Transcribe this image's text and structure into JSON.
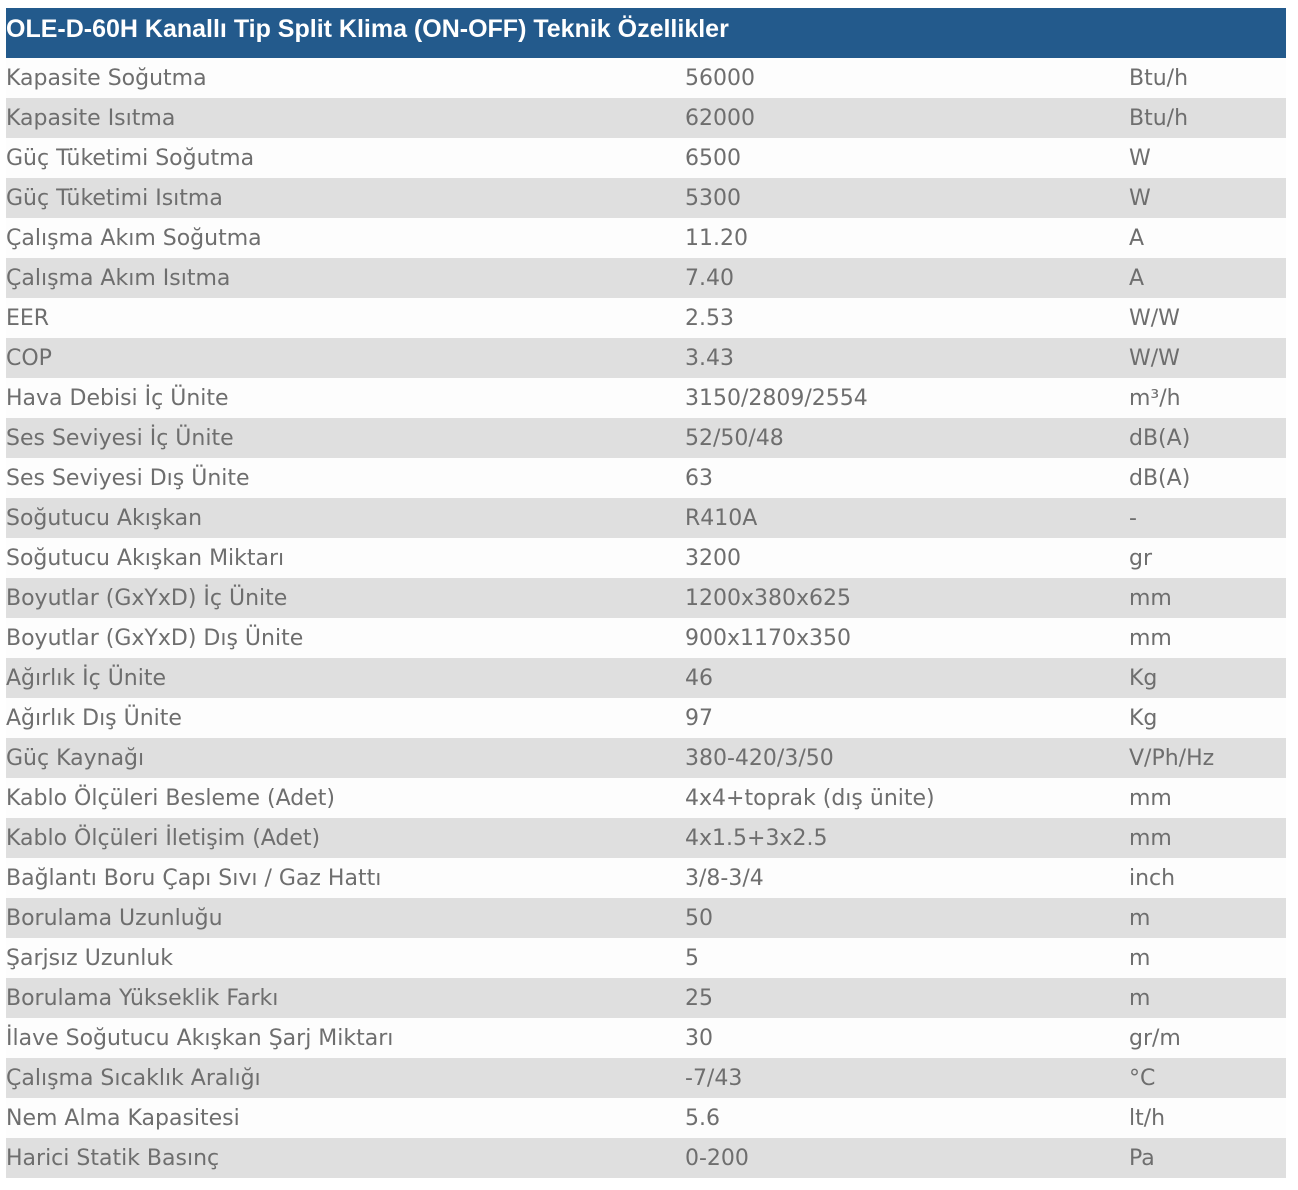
{
  "title": "OLE-D-60H Kanallı Tip Split Klima (ON-OFF) Teknik Özellikler",
  "colors": {
    "header_bg": "#235a8c",
    "row_alt": "#dfdfdf",
    "text": "#6e6e6e"
  },
  "rows": [
    {
      "label": "Kapasite Soğutma",
      "value": "56000",
      "unit": "Btu/h"
    },
    {
      "label": "Kapasite Isıtma",
      "value": "62000",
      "unit": "Btu/h"
    },
    {
      "label": "Güç Tüketimi Soğutma",
      "value": "6500",
      "unit": "W"
    },
    {
      "label": "Güç Tüketimi Isıtma",
      "value": "5300",
      "unit": "W"
    },
    {
      "label": "Çalışma Akım Soğutma",
      "value": "11.20",
      "unit": "A"
    },
    {
      "label": "Çalışma Akım Isıtma",
      "value": "7.40",
      "unit": "A"
    },
    {
      "label": "EER",
      "value": "2.53",
      "unit": "W/W"
    },
    {
      "label": "COP",
      "value": "3.43",
      "unit": "W/W"
    },
    {
      "label": "Hava Debisi İç Ünite",
      "value": "3150/2809/2554",
      "unit": "m³/h"
    },
    {
      "label": "Ses Seviyesi İç Ünite",
      "value": "52/50/48",
      "unit": "dB(A)"
    },
    {
      "label": "Ses Seviyesi Dış Ünite",
      "value": "63",
      "unit": "dB(A)"
    },
    {
      "label": "Soğutucu Akışkan",
      "value": "R410A",
      "unit": "-"
    },
    {
      "label": "Soğutucu Akışkan Miktarı",
      "value": "3200",
      "unit": "gr"
    },
    {
      "label": "Boyutlar (GxYxD) İç Ünite",
      "value": "1200x380x625",
      "unit": "mm"
    },
    {
      "label": "Boyutlar (GxYxD) Dış Ünite",
      "value": "900x1170x350",
      "unit": "mm"
    },
    {
      "label": "Ağırlık İç Ünite",
      "value": "46",
      "unit": "Kg"
    },
    {
      "label": "Ağırlık Dış Ünite",
      "value": "97",
      "unit": "Kg"
    },
    {
      "label": "Güç Kaynağı",
      "value": "380-420/3/50",
      "unit": "V/Ph/Hz"
    },
    {
      "label": "Kablo Ölçüleri Besleme (Adet)",
      "value": "4x4+toprak (dış ünite)",
      "unit": "mm"
    },
    {
      "label": "Kablo Ölçüleri İletişim (Adet)",
      "value": "4x1.5+3x2.5",
      "unit": "mm"
    },
    {
      "label": "Bağlantı Boru Çapı Sıvı / Gaz Hattı",
      "value": "3/8-3/4",
      "unit": "inch"
    },
    {
      "label": "Borulama Uzunluğu",
      "value": "50",
      "unit": "m"
    },
    {
      "label": "Şarjsız Uzunluk",
      "value": "5",
      "unit": "m"
    },
    {
      "label": "Borulama Yükseklik Farkı",
      "value": "25",
      "unit": "m"
    },
    {
      "label": "İlave Soğutucu Akışkan Şarj Miktarı",
      "value": "30",
      "unit": "gr/m"
    },
    {
      "label": "Çalışma Sıcaklık Aralığı",
      "value": "-7/43",
      "unit": "°C"
    },
    {
      "label": "Nem Alma Kapasitesi",
      "value": "5.6",
      "unit": "lt/h"
    },
    {
      "label": "Harici Statik Basınç",
      "value": "0-200",
      "unit": "Pa"
    }
  ]
}
